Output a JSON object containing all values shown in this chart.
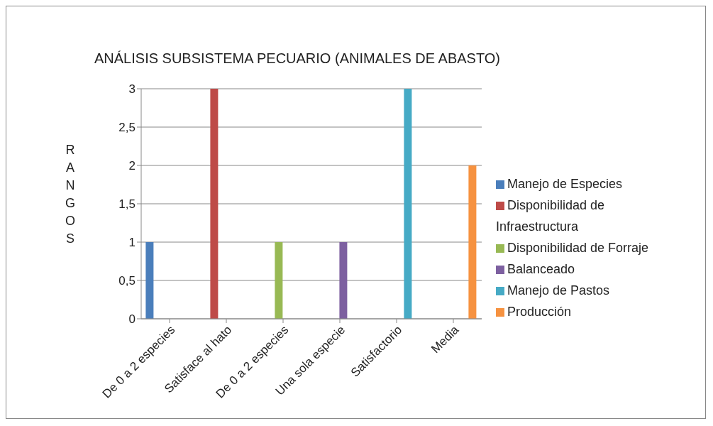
{
  "chart_data": {
    "type": "bar",
    "title": "ANÁLISIS SUBSISTEMA PECUARIO (ANIMALES DE ABASTO)",
    "ylabel": "RANGOS",
    "categories": [
      "De 0 a 2 especies",
      "Satisface al hato",
      "De 0 a 2 especies",
      "Una sola especie",
      "Satisfactorio",
      "Media"
    ],
    "series": [
      {
        "name": "Manejo de Especies",
        "color": "#4a7ebb",
        "values": [
          1,
          null,
          null,
          null,
          null,
          null
        ]
      },
      {
        "name": "Disponibilidad de Infraestructura",
        "color": "#be4b48",
        "values": [
          null,
          3,
          null,
          null,
          null,
          null
        ]
      },
      {
        "name": "Disponibilidad de Forraje",
        "color": "#98b954",
        "values": [
          null,
          null,
          1,
          null,
          null,
          null
        ]
      },
      {
        "name": "Balanceado",
        "color": "#7d60a0",
        "values": [
          null,
          null,
          null,
          1,
          null,
          null
        ]
      },
      {
        "name": "Manejo de Pastos",
        "color": "#46aac5",
        "values": [
          null,
          null,
          null,
          null,
          3,
          null
        ]
      },
      {
        "name": "Producción",
        "color": "#f69240",
        "values": [
          null,
          null,
          null,
          null,
          null,
          2
        ]
      }
    ],
    "ylim": [
      0,
      3
    ],
    "yticks": [
      0,
      {
        "value": 0.5,
        "label": "0,5"
      },
      1,
      {
        "value": 1.5,
        "label": "1,5"
      },
      2,
      {
        "value": 2.5,
        "label": "2,5"
      },
      3
    ],
    "grid": "y",
    "legend": "right"
  }
}
